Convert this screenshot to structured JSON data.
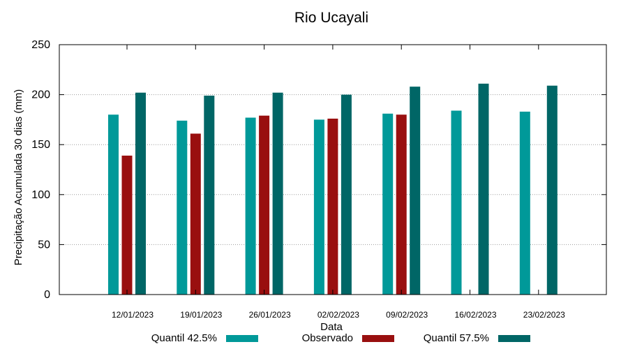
{
  "chart_data": {
    "type": "bar",
    "title": "Rio Ucayali",
    "xlabel": "Data",
    "ylabel": "Precipitação Acumulada 30 dias (mm)",
    "ylim": [
      0,
      250
    ],
    "yticks": [
      0,
      50,
      100,
      150,
      200,
      250
    ],
    "grid": true,
    "legend_position": "bottom",
    "categories": [
      "12/01/2023",
      "19/01/2023",
      "26/01/2023",
      "02/02/2023",
      "09/02/2023",
      "16/02/2023",
      "23/02/2023"
    ],
    "series": [
      {
        "name": "Quantil 42.5%",
        "color": "#009999",
        "values": [
          180,
          174,
          177,
          175,
          181,
          184,
          183
        ]
      },
      {
        "name": "Observado",
        "color": "#990f0f",
        "values": [
          139,
          161,
          179,
          176,
          180,
          null,
          null
        ]
      },
      {
        "name": "Quantil 57.5%",
        "color": "#006666",
        "values": [
          202,
          199,
          202,
          200,
          208,
          211,
          209
        ]
      }
    ]
  }
}
